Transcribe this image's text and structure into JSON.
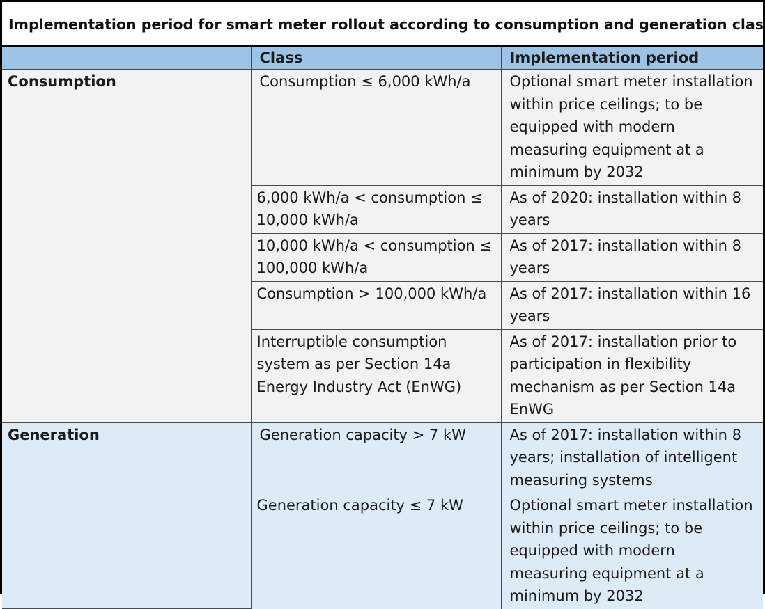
{
  "title": "Implementation period for smart meter rollout according to consumption and generation classes",
  "header": {
    "col1": "",
    "col2": "Class",
    "col3": "Implementation period"
  },
  "colors": {
    "header_bg": "#9dc3e6",
    "consumption_bg": "#f2f2f2",
    "generation_bg": "#ddebf7",
    "border": "#000000"
  },
  "groups": [
    {
      "label": "Consumption",
      "rows": [
        {
          "class": "Consumption ≤ 6,000 kWh/a",
          "period": "Optional smart meter installation within price ceilings; to be equipped with modern measuring equipment at a minimum by 2032"
        },
        {
          "class": "6,000 kWh/a < consumption ≤ 10,000 kWh/a",
          "period": "As of 2020: installation within 8 years"
        },
        {
          "class": "10,000 kWh/a < consumption ≤ 100,000 kWh/a",
          "period": "As of 2017: installation within 8 years"
        },
        {
          "class": "Consumption > 100,000 kWh/a",
          "period": "As of 2017: installation within 16 years"
        },
        {
          "class": "Interruptible consumption system as per Section 14a Energy Industry Act (EnWG)",
          "period": "As of 2017: installation prior to participation in flexibility mechanism as per Section 14a EnWG"
        }
      ]
    },
    {
      "label": "Generation",
      "rows": [
        {
          "class": "Generation capacity > 7 kW",
          "period": "As of 2017: installation within 8 years; installation of intelligent measuring systems"
        },
        {
          "class": "Generation capacity ≤ 7 kW",
          "period": "Optional smart meter installation within price ceilings; to be equipped with modern measuring equipment at a minimum by 2032"
        }
      ]
    }
  ]
}
